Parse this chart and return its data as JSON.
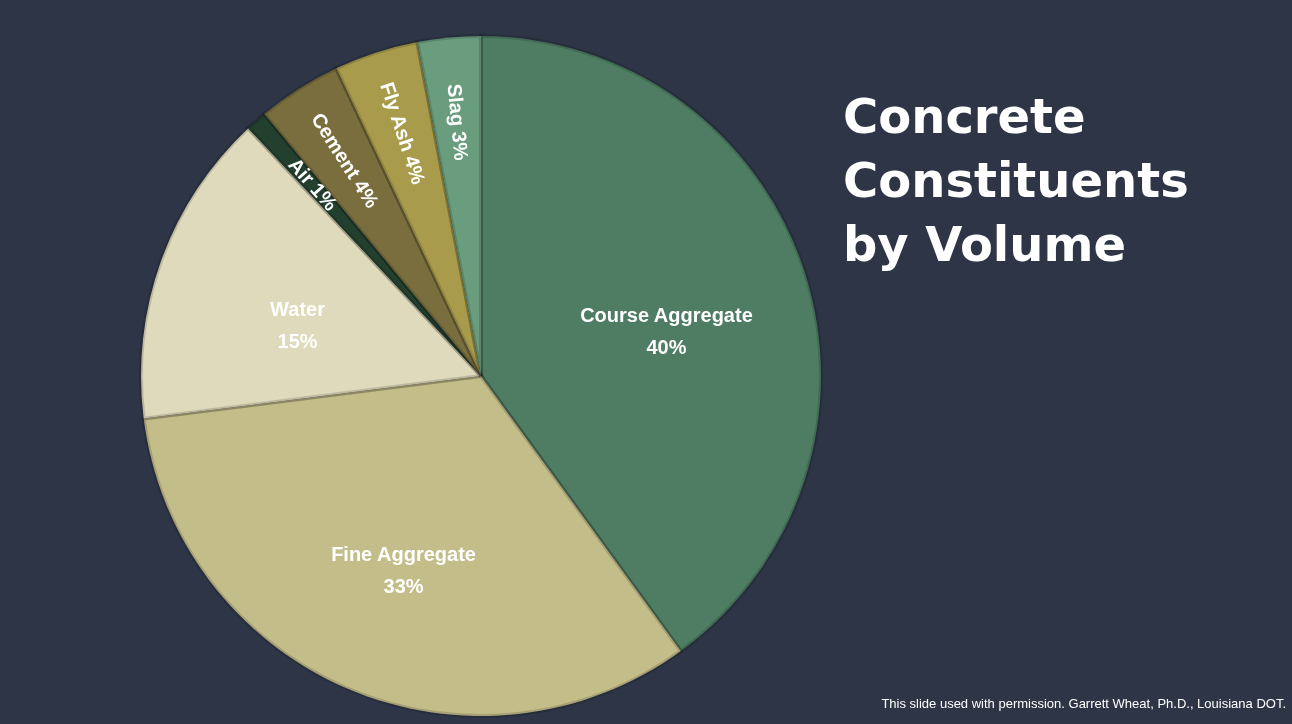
{
  "chart_data": {
    "type": "pie",
    "title": "Concrete Constituents by Volume",
    "categories": [
      "Course Aggregate",
      "Fine Aggregate",
      "Water",
      "Air",
      "Cement",
      "Fly Ash",
      "Slag"
    ],
    "values": [
      40,
      33,
      15,
      1,
      4,
      4,
      3
    ],
    "value_labels": [
      "40%",
      "33%",
      "15%",
      "1%",
      "4%",
      "4%",
      "3%"
    ],
    "colors": [
      "#4e7d63",
      "#c3bd89",
      "#dfdabb",
      "#23402f",
      "#7a6e3e",
      "#a89c4c",
      "#6a9c7e"
    ],
    "annotations": [
      "This slide used with permission. Garrett Wheat, Ph.D., Louisiana DOT."
    ]
  }
}
